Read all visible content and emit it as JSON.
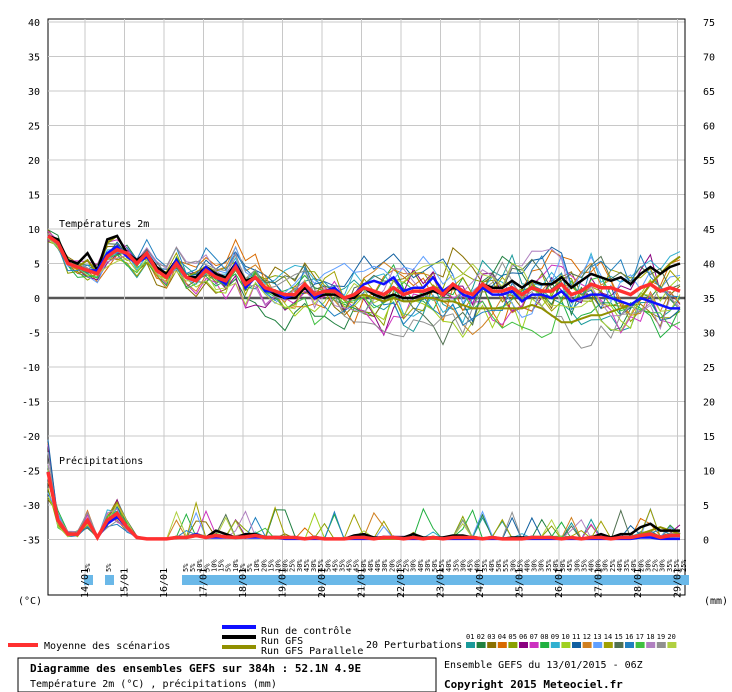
{
  "chart_data": {
    "type": "line",
    "title": "Diagramme des ensembles GEFS sur 384h : 52.1N 4.9E",
    "subtitle": "Température 2m (°C) , précipitations (mm)",
    "source_label": "Ensemble GEFS du 13/01/2015 - 06Z",
    "copyright": "Copyright 2015 Meteociel.fr",
    "panel_temp_label": "Températures 2m",
    "panel_precip_label": "Précipitations",
    "y_left_unit": "(°C)",
    "y_right_unit": "(mm)",
    "y_left_ticks": [
      40,
      35,
      30,
      25,
      20,
      15,
      10,
      5,
      0,
      -5,
      -10,
      -15,
      -20,
      -25,
      -30,
      -35
    ],
    "y_right_ticks": [
      75,
      70,
      65,
      60,
      55,
      50,
      45,
      40,
      35,
      30,
      25,
      20,
      15,
      10,
      5,
      0
    ],
    "ylim_left": [
      -35,
      40
    ],
    "x_dates": [
      "14/01",
      "15/01",
      "16/01",
      "17/01",
      "18/01",
      "19/01",
      "20/01",
      "21/01",
      "22/01",
      "23/01",
      "24/01",
      "25/01",
      "26/01",
      "27/01",
      "28/01",
      "29/01"
    ],
    "snow_pct_labels": [
      "5%",
      "5%",
      "5%",
      "5%",
      "10%",
      "5%",
      "10%",
      "15%",
      "5%",
      "10%",
      "5%",
      "5%",
      "10%",
      "20%",
      "15%",
      "10%",
      "20%",
      "25%",
      "30%",
      "45%",
      "30%",
      "45%",
      "50%",
      "45%",
      "35%",
      "45%",
      "45%",
      "50%",
      "40%",
      "40%",
      "30%",
      "20%",
      "35%",
      "25%",
      "30%",
      "40%",
      "30%",
      "50%",
      "45%",
      "40%",
      "35%",
      "30%",
      "45%",
      "40%",
      "35%",
      "40%",
      "50%",
      "55%",
      "30%",
      "35%",
      "40%",
      "30%",
      "30%",
      "35%",
      "40%",
      "30%",
      "45%",
      "30%",
      "35%",
      "40%",
      "30%",
      "30%",
      "25%",
      "40%",
      "35%",
      "40%",
      "20%",
      "30%",
      "25%",
      "30%",
      "35%",
      "25%",
      "25%"
    ],
    "legend": {
      "mean": "Moyenne des scénarios",
      "control": "Run de contrôle",
      "gfs": "Run GFS",
      "gfs_par": "Run GFS Parallele",
      "perturbations": "20 Perturbations",
      "perturbation_ids": [
        "01",
        "02",
        "03",
        "04",
        "05",
        "06",
        "07",
        "08",
        "09",
        "10",
        "11",
        "12",
        "13",
        "14",
        "15",
        "16",
        "17",
        "18",
        "19",
        "20"
      ]
    },
    "colors": {
      "mean": "#ff3030",
      "control": "#1010ff",
      "gfs": "#000000",
      "gfs_par": "#909000",
      "perturbations": [
        "#1a9a9a",
        "#208040",
        "#8a7000",
        "#d86a00",
        "#8aa000",
        "#8a0080",
        "#cc30c0",
        "#20b040",
        "#30b0d0",
        "#a0d020",
        "#1060a0",
        "#d08020",
        "#60a0ff",
        "#a0a000",
        "#507050",
        "#2080c0",
        "#40c040",
        "#b080c0",
        "#909090",
        "#b0d040"
      ]
    },
    "series": [
      {
        "name": "Moyenne des scénarios",
        "x_days": [
          0.0,
          0.25,
          0.5,
          0.75,
          1.0,
          1.25,
          1.5,
          1.75,
          2.0,
          2.25,
          2.5,
          2.75,
          3.0,
          3.25,
          3.5,
          3.75,
          4.0,
          4.25,
          4.5,
          4.75,
          5.0,
          5.25,
          5.5,
          5.75,
          6.0,
          6.25,
          6.5,
          6.75,
          7.0,
          7.25,
          7.5,
          7.75,
          8.0,
          8.25,
          8.5,
          8.75,
          9.0,
          9.25,
          9.5,
          9.75,
          10.0,
          10.25,
          10.5,
          10.75,
          11.0,
          11.25,
          11.5,
          11.75,
          12.0,
          12.25,
          12.5,
          12.75,
          13.0,
          13.25,
          13.5,
          13.75,
          14.0,
          14.25,
          14.5,
          14.75,
          15.0,
          15.25,
          15.5,
          15.75,
          16.0
        ],
        "temp": [
          9.0,
          8.0,
          5.0,
          4.5,
          4.0,
          3.5,
          6.0,
          7.0,
          6.5,
          5.0,
          6.5,
          4.0,
          3.0,
          5.0,
          3.0,
          2.5,
          4.0,
          3.0,
          2.5,
          4.5,
          2.0,
          3.0,
          1.5,
          1.0,
          0.5,
          0.5,
          2.0,
          0.5,
          1.0,
          1.0,
          0.0,
          0.5,
          1.5,
          1.0,
          0.5,
          1.5,
          0.5,
          1.0,
          1.0,
          1.5,
          0.5,
          2.0,
          1.0,
          0.5,
          2.0,
          1.0,
          1.0,
          1.5,
          0.5,
          1.5,
          1.0,
          1.0,
          2.0,
          0.5,
          1.0,
          2.0,
          1.5,
          1.5,
          1.0,
          0.5,
          1.5,
          2.0,
          1.0,
          1.5,
          1.0
        ],
        "precip_mm": [
          10,
          3,
          1,
          1,
          3,
          0.5,
          3,
          4,
          2,
          0.5,
          0.3,
          0.3,
          0.3,
          0.5,
          0.5,
          0.8,
          0.5,
          0.8,
          0.6,
          0.5,
          0.6,
          0.8,
          0.5,
          0.5,
          0.5,
          0.5,
          0.3,
          0.5,
          0.3,
          0.3,
          0.3,
          0.5,
          0.5,
          0.3,
          0.5,
          0.5,
          0.3,
          0.5,
          0.3,
          0.5,
          0.3,
          0.5,
          0.5,
          0.5,
          0.3,
          0.5,
          0.3,
          0.3,
          0.3,
          0.5,
          0.5,
          0.5,
          0.3,
          0.5,
          0.3,
          0.5,
          0.5,
          0.3,
          0.5,
          0.5,
          0.8,
          1,
          0.5,
          0.8,
          0.8
        ]
      },
      {
        "name": "Run de contrôle",
        "x_days": [
          0.0,
          0.25,
          0.5,
          0.75,
          1.0,
          1.25,
          1.5,
          1.75,
          2.0,
          2.25,
          2.5,
          2.75,
          3.0,
          3.25,
          3.5,
          3.75,
          4.0,
          4.25,
          4.5,
          4.75,
          5.0,
          5.25,
          5.5,
          5.75,
          6.0,
          6.25,
          6.5,
          6.75,
          7.0,
          7.25,
          7.5,
          7.75,
          8.0,
          8.25,
          8.5,
          8.75,
          9.0,
          9.25,
          9.5,
          9.75,
          10.0,
          10.25,
          10.5,
          10.75,
          11.0,
          11.25,
          11.5,
          11.75,
          12.0,
          12.25,
          12.5,
          12.75,
          13.0,
          13.25,
          13.5,
          13.75,
          14.0,
          14.25,
          14.5,
          14.75,
          15.0,
          15.25,
          15.5,
          15.75,
          16.0
        ],
        "temp": [
          9.0,
          8.0,
          5.0,
          4.5,
          4.0,
          4.0,
          6.5,
          7.5,
          6.0,
          5.0,
          6.0,
          4.0,
          3.0,
          5.5,
          3.0,
          2.5,
          4.5,
          3.0,
          2.0,
          5.0,
          1.5,
          3.0,
          1.0,
          1.0,
          0.0,
          0.5,
          2.0,
          0.0,
          1.0,
          1.5,
          0.0,
          0.5,
          2.0,
          2.5,
          2.0,
          3.0,
          1.0,
          1.5,
          1.5,
          3.0,
          1.0,
          2.0,
          0.5,
          0.0,
          1.5,
          0.5,
          0.5,
          1.0,
          -0.5,
          0.5,
          0.5,
          0.0,
          1.0,
          -0.5,
          0.0,
          0.5,
          0.5,
          0.0,
          -0.5,
          -1.0,
          0.0,
          -0.5,
          -1.0,
          -1.5,
          -1.5
        ],
        "precip_mm": [
          10,
          3,
          1,
          1,
          3,
          0.5,
          2.5,
          3.5,
          2,
          0.5,
          0.3,
          0.3,
          0.3,
          0.5,
          0.5,
          1,
          0.5,
          0.5,
          0.5,
          0.5,
          0.5,
          0.5,
          0.5,
          0.5,
          0.3,
          0.3,
          0.3,
          0.3,
          0.3,
          0.3,
          0.3,
          0.3,
          0.3,
          0.3,
          0.5,
          0.5,
          0.3,
          0.3,
          0.3,
          0.5,
          0.3,
          0.3,
          0.3,
          0.3,
          0.3,
          0.3,
          0.3,
          0.3,
          0.3,
          0.3,
          0.3,
          0.3,
          0.3,
          0.3,
          0.3,
          0.3,
          0.3,
          0.3,
          0.3,
          0.3,
          0.5,
          0.5,
          0.3,
          0.3,
          0.3
        ]
      },
      {
        "name": "Run GFS",
        "x_days": [
          0.0,
          0.25,
          0.5,
          0.75,
          1.0,
          1.25,
          1.5,
          1.75,
          2.0,
          2.25,
          2.5,
          2.75,
          3.0,
          3.25,
          3.5,
          3.75,
          4.0,
          4.25,
          4.5,
          4.75,
          5.0,
          5.25,
          5.5,
          5.75,
          6.0,
          6.25,
          6.5,
          6.75,
          7.0,
          7.25,
          7.5,
          7.75,
          8.0,
          8.25,
          8.5,
          8.75,
          9.0,
          9.25,
          9.5,
          9.75,
          10.0,
          10.25,
          10.5,
          10.75,
          11.0,
          11.25,
          11.5,
          11.75,
          12.0,
          12.25,
          12.5,
          12.75,
          13.0,
          13.25,
          13.5,
          13.75,
          14.0,
          14.25,
          14.5,
          14.75,
          15.0,
          15.25,
          15.5,
          15.75,
          16.0
        ],
        "temp": [
          9.0,
          8.5,
          5.5,
          5.0,
          6.5,
          4.0,
          8.5,
          9.0,
          6.5,
          5.5,
          6.5,
          4.5,
          3.5,
          5.5,
          3.0,
          3.0,
          4.5,
          3.5,
          3.0,
          5.0,
          2.5,
          3.0,
          1.5,
          0.5,
          0.0,
          0.0,
          1.5,
          0.0,
          0.5,
          0.5,
          0.0,
          0.0,
          1.5,
          0.5,
          0.0,
          0.5,
          0.0,
          0.0,
          0.5,
          1.0,
          0.5,
          1.5,
          1.0,
          0.5,
          2.0,
          1.5,
          1.5,
          2.5,
          1.5,
          2.5,
          2.0,
          2.0,
          3.0,
          1.5,
          2.5,
          3.5,
          3.0,
          2.5,
          3.0,
          2.0,
          3.5,
          4.5,
          3.5,
          4.5,
          5.0
        ],
        "precip_mm": [
          10,
          3,
          1,
          1,
          3,
          0.5,
          3,
          4,
          2,
          0.5,
          0.3,
          0.3,
          0.3,
          0.5,
          0.5,
          0.8,
          0.5,
          1.5,
          1,
          0.5,
          1,
          1,
          0.5,
          0.5,
          0.5,
          0.5,
          0.3,
          0.5,
          0.3,
          0.3,
          0.3,
          0.8,
          1,
          0.5,
          0.5,
          0.5,
          0.5,
          1,
          0.5,
          0.5,
          0.5,
          0.8,
          0.8,
          0.5,
          0.3,
          0.5,
          0.3,
          0.5,
          0.5,
          0.5,
          0.5,
          0.5,
          0.3,
          0.5,
          0.3,
          0.5,
          1,
          0.5,
          1,
          1,
          2,
          2.5,
          1.5,
          1.5,
          1.5
        ]
      },
      {
        "name": "Run GFS Parallele",
        "x_days": [
          0.0,
          0.25,
          0.5,
          0.75,
          1.0,
          1.25,
          1.5,
          1.75,
          2.0,
          2.25,
          2.5,
          2.75,
          3.0,
          3.25,
          3.5,
          3.75,
          4.0,
          4.25,
          4.5,
          4.75,
          5.0,
          5.25,
          5.5,
          5.75,
          6.0,
          6.25,
          6.5,
          6.75,
          7.0,
          7.25,
          7.5,
          7.75,
          8.0,
          8.25,
          8.5,
          8.75,
          9.0,
          9.25,
          9.5,
          9.75,
          10.0,
          10.25,
          10.5,
          10.75,
          11.0,
          11.25,
          11.5,
          11.75,
          12.0,
          12.25,
          12.5,
          12.75,
          13.0,
          13.25,
          13.5,
          13.75,
          14.0,
          14.25,
          14.5,
          14.75,
          15.0,
          15.25,
          15.5,
          15.75,
          16.0
        ],
        "temp": [
          9.0,
          8.5,
          5.0,
          4.5,
          5.5,
          3.5,
          8.0,
          9.0,
          6.5,
          5.0,
          6.5,
          4.0,
          3.5,
          5.0,
          3.0,
          3.0,
          4.0,
          3.0,
          2.5,
          5.0,
          2.0,
          3.0,
          1.5,
          1.0,
          0.0,
          0.5,
          2.0,
          0.0,
          0.5,
          1.0,
          0.0,
          0.0,
          0.5,
          0.0,
          -0.5,
          0.0,
          -0.5,
          -0.5,
          0.0,
          0.0,
          -0.5,
          -0.5,
          -1.0,
          -1.5,
          -1.5,
          -1.5,
          -1.5,
          -1.5,
          -1.5,
          -1.0,
          -1.5,
          -2.5,
          -3.5,
          -3.5,
          -3.0,
          -2.5,
          -2.5,
          -2.0,
          -1.5,
          -1.0,
          0.0,
          2.0,
          3.5,
          5.0,
          6.0
        ],
        "precip_mm": [
          10,
          3,
          1,
          1,
          3,
          0.5,
          3,
          4,
          2,
          0.5,
          0.3,
          0.3,
          0.3,
          0.5,
          0.5,
          0.8,
          0.5,
          0.8,
          0.5,
          0.5,
          0.5,
          0.5,
          0.5,
          0.5,
          0.3,
          0.3,
          0.3,
          0.3,
          0.3,
          0.3,
          0.3,
          0.3,
          0.5,
          0.3,
          0.3,
          0.3,
          0.3,
          0.3,
          0.3,
          0.3,
          0.3,
          0.3,
          0.3,
          0.3,
          0.3,
          0.3,
          0.3,
          0.3,
          0.3,
          0.3,
          0.3,
          0.3,
          0.3,
          0.3,
          0.3,
          0.3,
          0.3,
          0.3,
          0.3,
          0.5,
          1,
          1.5,
          2,
          1.5,
          1
        ]
      }
    ]
  }
}
